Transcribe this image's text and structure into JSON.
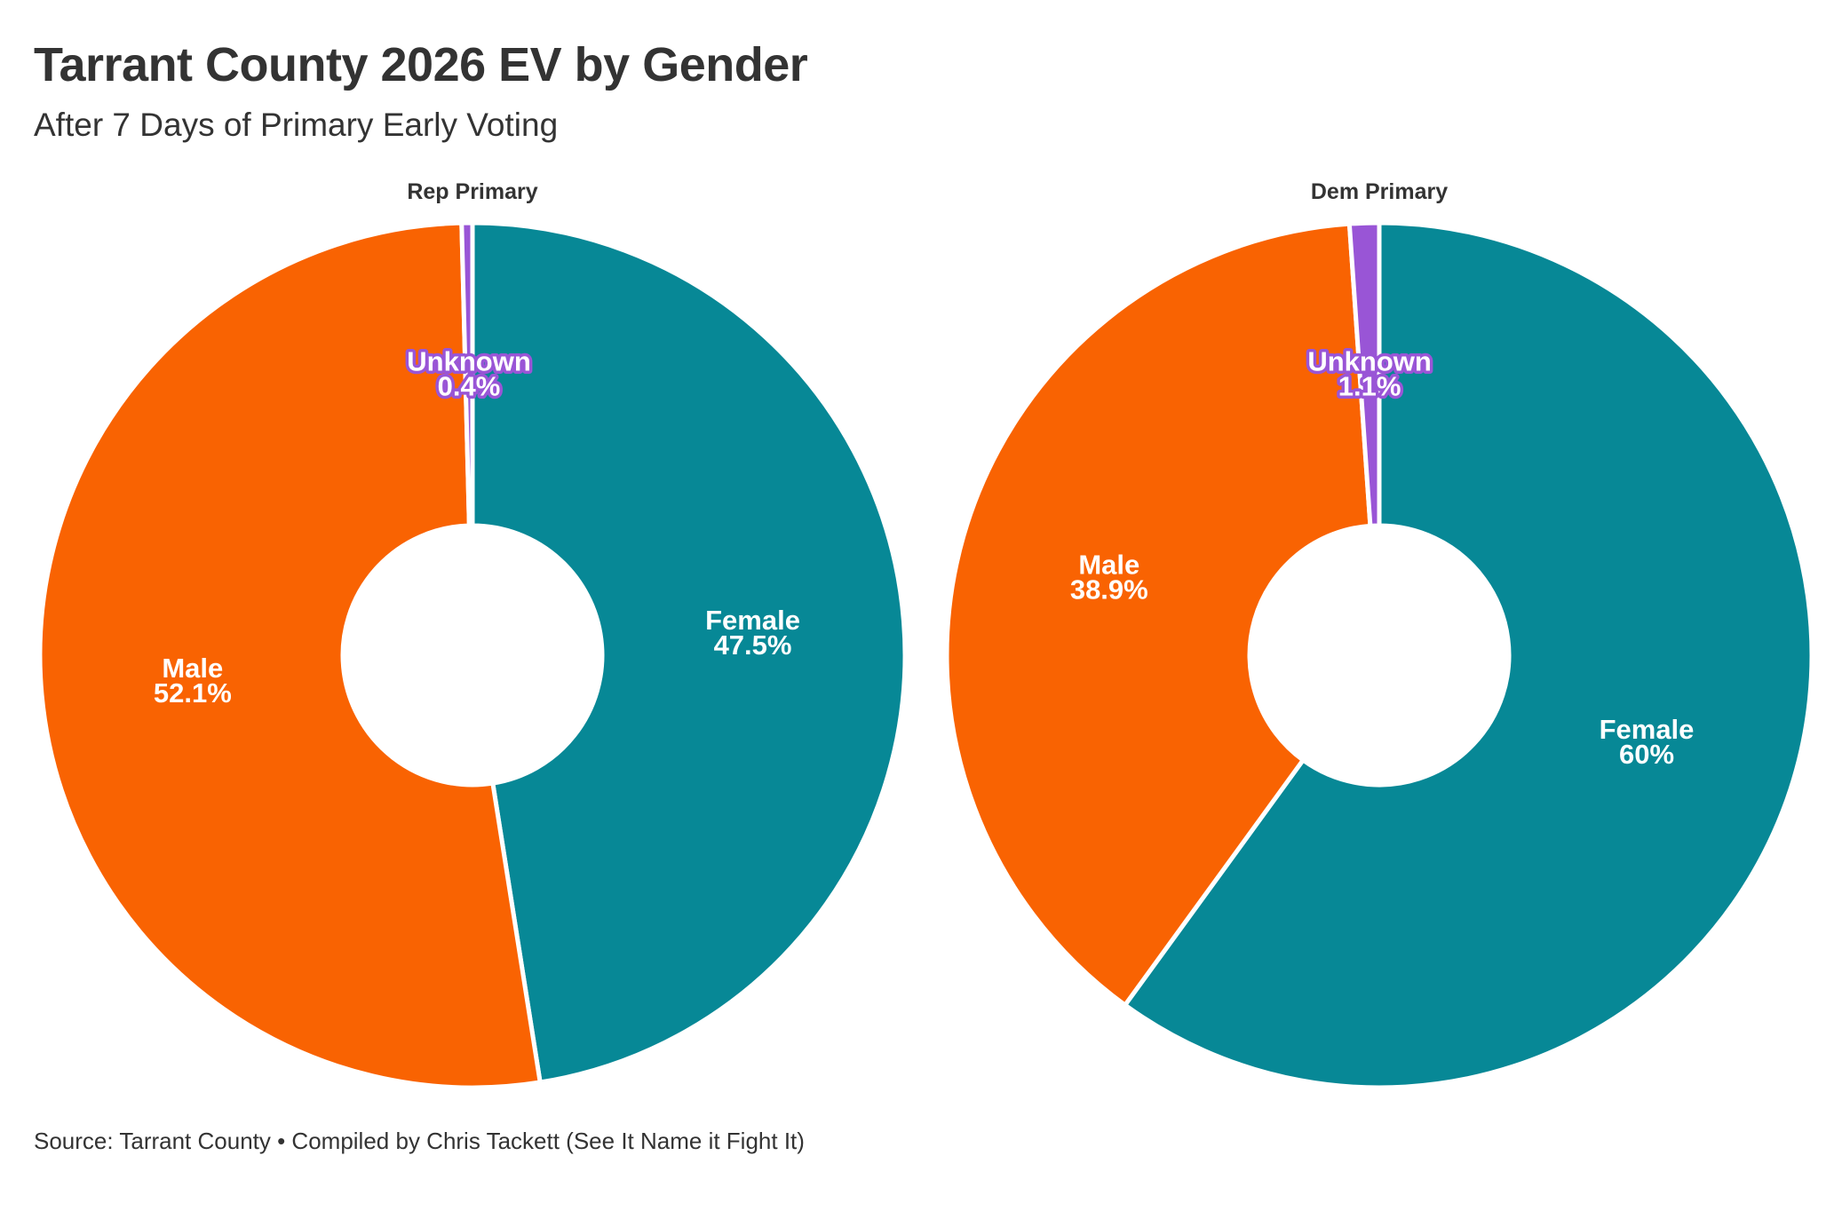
{
  "title": "Tarrant County 2026 EV by Gender",
  "subtitle": "After 7 Days of Primary Early Voting",
  "source": "Source: Tarrant County • Compiled by Chris Tackett (See It Name it Fight It)",
  "colors": {
    "Female": "#078896",
    "Male": "#F96302",
    "Unknown": "#9955D6"
  },
  "chart_data": [
    {
      "type": "pie",
      "variant": "donut",
      "title": "Rep Primary",
      "slices": [
        {
          "label": "Female",
          "value": 47.5,
          "display": "47.5%"
        },
        {
          "label": "Male",
          "value": 52.1,
          "display": "52.1%"
        },
        {
          "label": "Unknown",
          "value": 0.4,
          "display": "0.4%"
        }
      ]
    },
    {
      "type": "pie",
      "variant": "donut",
      "title": "Dem Primary",
      "slices": [
        {
          "label": "Female",
          "value": 60,
          "display": "60%"
        },
        {
          "label": "Male",
          "value": 38.9,
          "display": "38.9%"
        },
        {
          "label": "Unknown",
          "value": 1.1,
          "display": "1.1%"
        }
      ]
    }
  ]
}
